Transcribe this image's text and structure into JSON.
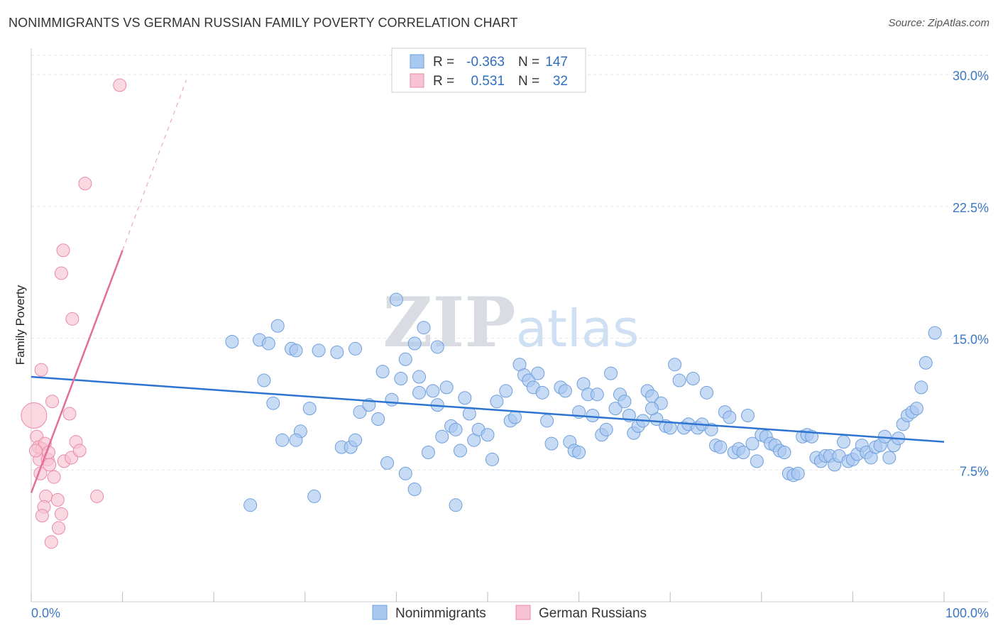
{
  "title": "NONIMMIGRANTS VS GERMAN RUSSIAN FAMILY POVERTY CORRELATION CHART",
  "source": "Source: ZipAtlas.com",
  "watermark": "ZIPatlas",
  "chart_data": {
    "type": "scatter",
    "ylabel": "Family Poverty",
    "xlim": [
      0,
      100
    ],
    "ylim": [
      0,
      31.5
    ],
    "x_tick_labels": [
      "0.0%",
      "100.0%"
    ],
    "y_ticks": [
      7.5,
      15.0,
      22.5,
      30.0
    ],
    "y_tick_labels": [
      "7.5%",
      "15.0%",
      "22.5%",
      "30.0%"
    ],
    "legend": {
      "rows": [
        {
          "r_label": "R =",
          "r_value": "-0.363",
          "n_label": "N =",
          "n_value": "147"
        },
        {
          "r_label": "R =",
          "r_value": "0.531",
          "n_label": "N =",
          "n_value": "32"
        }
      ]
    },
    "series": [
      {
        "name": "Nonimmigrants",
        "color": "#a9c8f0",
        "stroke": "#6f9fdc",
        "trend_color": "#2d74d0",
        "trend": {
          "x0": 0,
          "y0": 12.8,
          "x1": 100,
          "y1": 9.1
        },
        "points": [
          [
            22,
            14.8
          ],
          [
            25,
            14.9
          ],
          [
            26,
            14.7
          ],
          [
            27,
            15.7
          ],
          [
            28.5,
            14.4
          ],
          [
            29,
            14.3
          ],
          [
            31.5,
            14.3
          ],
          [
            33.5,
            14.2
          ],
          [
            35.5,
            14.4
          ],
          [
            38.5,
            13.1
          ],
          [
            40,
            17.2
          ],
          [
            41,
            13.8
          ],
          [
            42,
            14.7
          ],
          [
            43,
            15.6
          ],
          [
            44.5,
            14.5
          ],
          [
            25.5,
            12.6
          ],
          [
            26.5,
            11.3
          ],
          [
            27.5,
            9.2
          ],
          [
            29.5,
            9.7
          ],
          [
            30.5,
            11.0
          ],
          [
            31,
            6.0
          ],
          [
            34,
            8.8
          ],
          [
            35,
            8.8
          ],
          [
            35.5,
            9.2
          ],
          [
            36,
            10.8
          ],
          [
            37,
            11.2
          ],
          [
            38,
            10.4
          ],
          [
            39,
            7.9
          ],
          [
            39.5,
            11.5
          ],
          [
            40.5,
            12.7
          ],
          [
            41,
            7.3
          ],
          [
            42,
            6.4
          ],
          [
            42.5,
            11.9
          ],
          [
            43.5,
            8.5
          ],
          [
            44,
            12.0
          ],
          [
            44.5,
            11.2
          ],
          [
            45,
            9.4
          ],
          [
            45.5,
            12.2
          ],
          [
            46,
            10.0
          ],
          [
            46.5,
            5.5
          ],
          [
            47,
            8.6
          ],
          [
            47.5,
            11.6
          ],
          [
            48,
            10.7
          ],
          [
            48.5,
            9.2
          ],
          [
            49,
            9.8
          ],
          [
            50,
            9.5
          ],
          [
            50.5,
            8.1
          ],
          [
            51,
            11.4
          ],
          [
            52,
            12.0
          ],
          [
            52.5,
            10.3
          ],
          [
            53,
            10.5
          ],
          [
            53.5,
            13.5
          ],
          [
            54,
            12.9
          ],
          [
            54.5,
            12.6
          ],
          [
            55,
            12.2
          ],
          [
            55.5,
            13.0
          ],
          [
            56,
            11.9
          ],
          [
            56.5,
            10.3
          ],
          [
            57,
            9.0
          ],
          [
            58,
            12.2
          ],
          [
            58.5,
            12.0
          ],
          [
            59,
            9.1
          ],
          [
            59.5,
            8.6
          ],
          [
            60,
            10.8
          ],
          [
            60.5,
            12.4
          ],
          [
            61,
            11.8
          ],
          [
            61.5,
            10.6
          ],
          [
            62,
            11.8
          ],
          [
            62.5,
            9.5
          ],
          [
            63,
            9.8
          ],
          [
            63.5,
            13.0
          ],
          [
            64,
            11.0
          ],
          [
            64.5,
            11.8
          ],
          [
            65,
            11.4
          ],
          [
            65.5,
            10.6
          ],
          [
            66,
            9.6
          ],
          [
            66.5,
            10.0
          ],
          [
            67,
            10.3
          ],
          [
            67.5,
            12.0
          ],
          [
            68,
            11.7
          ],
          [
            68.5,
            10.4
          ],
          [
            69,
            11.3
          ],
          [
            69.5,
            10.0
          ],
          [
            70,
            9.9
          ],
          [
            70.5,
            13.5
          ],
          [
            71,
            12.6
          ],
          [
            71.5,
            9.9
          ],
          [
            72,
            10.1
          ],
          [
            72.5,
            12.7
          ],
          [
            73,
            9.9
          ],
          [
            73.5,
            10.1
          ],
          [
            74,
            11.9
          ],
          [
            74.5,
            9.8
          ],
          [
            75,
            8.9
          ],
          [
            75.5,
            8.8
          ],
          [
            76,
            10.8
          ],
          [
            76.5,
            10.5
          ],
          [
            77,
            8.5
          ],
          [
            77.5,
            8.7
          ],
          [
            78,
            8.5
          ],
          [
            78.5,
            10.6
          ],
          [
            79,
            9.0
          ],
          [
            79.5,
            8.0
          ],
          [
            80,
            9.5
          ],
          [
            80.5,
            9.4
          ],
          [
            81,
            9.0
          ],
          [
            81.5,
            8.9
          ],
          [
            82,
            8.6
          ],
          [
            82.5,
            8.5
          ],
          [
            83,
            7.3
          ],
          [
            83.5,
            7.2
          ],
          [
            84,
            7.3
          ],
          [
            84.5,
            9.4
          ],
          [
            85,
            9.5
          ],
          [
            85.5,
            9.4
          ],
          [
            86,
            8.2
          ],
          [
            86.5,
            8.0
          ],
          [
            87,
            8.3
          ],
          [
            87.5,
            8.3
          ],
          [
            88,
            7.8
          ],
          [
            88.5,
            8.3
          ],
          [
            89,
            9.1
          ],
          [
            89.5,
            8.0
          ],
          [
            90,
            8.1
          ],
          [
            90.5,
            8.4
          ],
          [
            91,
            8.9
          ],
          [
            91.5,
            8.5
          ],
          [
            92,
            8.2
          ],
          [
            92.5,
            8.8
          ],
          [
            93,
            8.9
          ],
          [
            93.5,
            9.4
          ],
          [
            94,
            8.2
          ],
          [
            94.5,
            8.9
          ],
          [
            95,
            9.3
          ],
          [
            95.5,
            10.1
          ],
          [
            96,
            10.6
          ],
          [
            96.5,
            10.8
          ],
          [
            97,
            11.0
          ],
          [
            97.5,
            12.2
          ],
          [
            98,
            13.6
          ],
          [
            99,
            15.3
          ],
          [
            29,
            9.2
          ],
          [
            24,
            5.5
          ],
          [
            42.5,
            12.8
          ],
          [
            60,
            8.5
          ],
          [
            68,
            11.0
          ],
          [
            46.5,
            9.8
          ]
        ]
      },
      {
        "name": "German Russians",
        "color": "#f7c3d2",
        "stroke": "#e98aa8",
        "trend_color": "#e36f98",
        "trend": {
          "x0": 0,
          "y0": 6.2,
          "x1": 10,
          "y1": 20.0
        },
        "trend_dashed": {
          "x0": 10,
          "y0": 20.0,
          "x1": 17,
          "y1": 29.7
        },
        "points": [
          [
            9.7,
            29.4
          ],
          [
            5.9,
            23.8
          ],
          [
            3.5,
            20.0
          ],
          [
            3.3,
            18.7
          ],
          [
            4.5,
            16.1
          ],
          [
            1.1,
            13.2
          ],
          [
            2.3,
            11.4
          ],
          [
            4.2,
            10.7
          ],
          [
            0.3,
            10.6
          ],
          [
            0.6,
            9.4
          ],
          [
            0.8,
            8.8
          ],
          [
            1.2,
            8.7
          ],
          [
            1.5,
            9.0
          ],
          [
            0.9,
            8.1
          ],
          [
            1.8,
            8.1
          ],
          [
            2.0,
            7.8
          ],
          [
            3.6,
            8.0
          ],
          [
            4.4,
            8.2
          ],
          [
            4.9,
            9.1
          ],
          [
            5.3,
            8.6
          ],
          [
            1.0,
            7.3
          ],
          [
            2.5,
            7.1
          ],
          [
            1.6,
            6.0
          ],
          [
            2.9,
            5.8
          ],
          [
            7.2,
            6.0
          ],
          [
            1.4,
            5.4
          ],
          [
            3.3,
            5.0
          ],
          [
            1.2,
            4.9
          ],
          [
            3.0,
            4.2
          ],
          [
            2.2,
            3.4
          ],
          [
            0.5,
            8.6
          ],
          [
            1.9,
            8.5
          ]
        ]
      }
    ]
  }
}
